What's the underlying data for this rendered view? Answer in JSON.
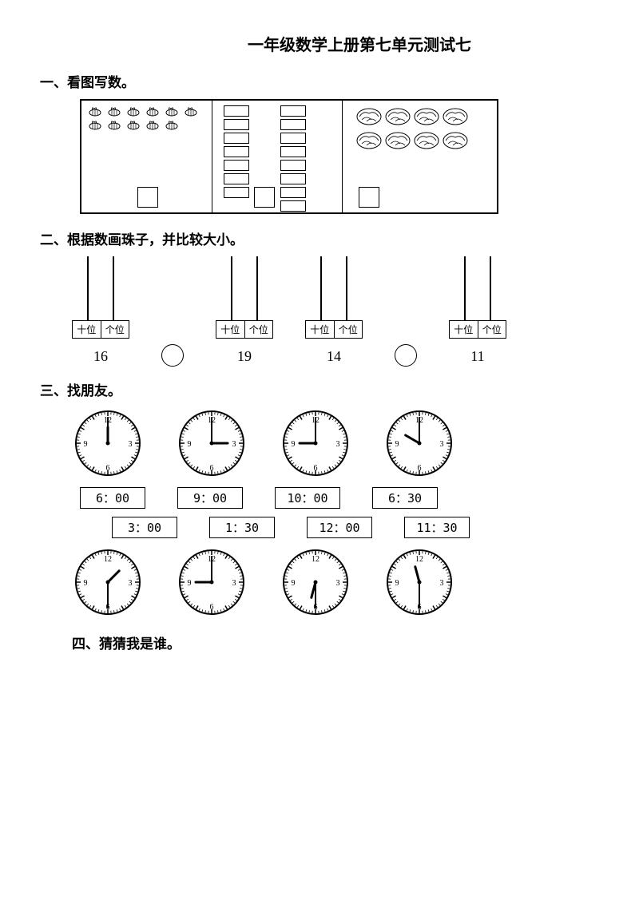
{
  "title": "一年级数学上册第七单元测试七",
  "q1": {
    "heading": "一、看图写数。",
    "panels": [
      {
        "type": "bees",
        "count": 11
      },
      {
        "type": "rects",
        "left_count": 7,
        "right_count": 8
      },
      {
        "type": "flowers",
        "count": 8
      }
    ]
  },
  "q2": {
    "heading": "二、根据数画珠子，并比较大小。",
    "tens_label": "十位",
    "ones_label": "个位",
    "groups": [
      {
        "number": "16"
      },
      {
        "number": "19"
      },
      {
        "number": "14"
      },
      {
        "number": "11"
      }
    ]
  },
  "q3": {
    "heading": "三、找朋友。",
    "clocks_top": [
      {
        "hour": 12,
        "minute": 0
      },
      {
        "hour": 3,
        "minute": 0
      },
      {
        "hour": 9,
        "minute": 0
      },
      {
        "hour": 10,
        "minute": 0
      }
    ],
    "times_row1": [
      "6：00",
      "9：00",
      "10：00",
      "6：30"
    ],
    "times_row2": [
      "3：00",
      "1：30",
      "12：00",
      "11：30"
    ],
    "clocks_bottom": [
      {
        "hour": 1,
        "minute": 30
      },
      {
        "hour": 9,
        "minute": 0
      },
      {
        "hour": 6,
        "minute": 30
      },
      {
        "hour": 11,
        "minute": 30
      }
    ]
  },
  "q4": {
    "heading": "四、猜猜我是谁。"
  },
  "style": {
    "stroke": "#000000",
    "bg": "#ffffff",
    "clock_radius": 40,
    "hour_hand_len": 20,
    "minute_hand_len": 32,
    "tick_major": 5,
    "tick_minor": 3
  }
}
